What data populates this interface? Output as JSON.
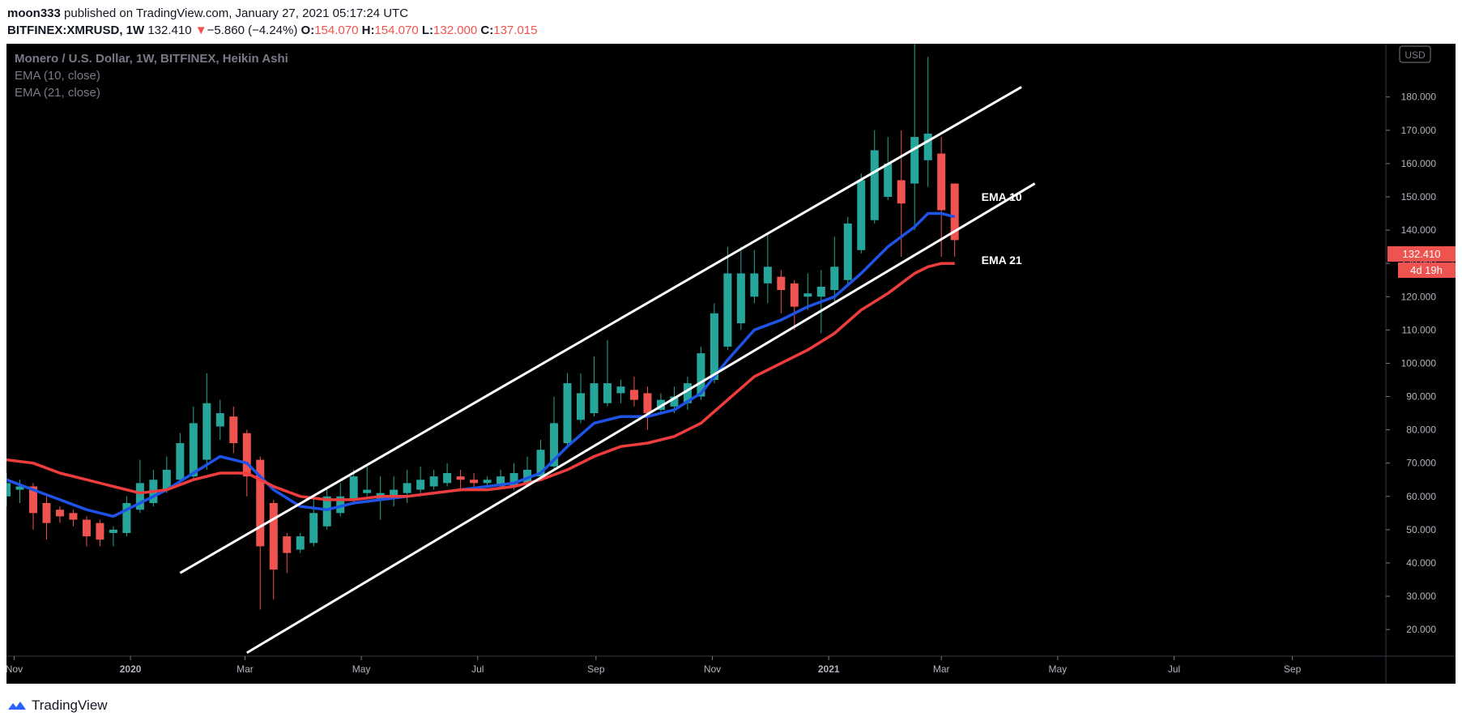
{
  "header": {
    "author": "moon333",
    "published_text": "published on TradingView.com, January 27, 2021 05:17:24 UTC",
    "symbol": "BITFINEX:XMRUSD, 1W",
    "last": "132.410",
    "arrow": "▼",
    "change": "−5.860 (−4.24%)",
    "o_label": "O:",
    "o_value": "154.070",
    "h_label": "H:",
    "h_value": "154.070",
    "l_label": "L:",
    "l_value": "132.000",
    "c_label": "C:",
    "c_value": "137.015"
  },
  "legend": {
    "title": "Monero / U.S. Dollar, 1W, BITFINEX, Heikin Ashi",
    "ema10": "EMA (10, close)",
    "ema21": "EMA (21, close)"
  },
  "price_axis": {
    "currency": "USD",
    "last_price_label": "132.410",
    "countdown_label": "4d 19h"
  },
  "footer": {
    "brand": "TradingView"
  },
  "colors": {
    "background": "#000000",
    "up": "#26a69a",
    "down": "#ef5350",
    "ema10": "#1e53e5",
    "ema21": "#ef3d3d",
    "trendline": "#ffffff"
  },
  "chart_data": {
    "type": "candlestick",
    "title": "Monero / U.S. Dollar, 1W, BITFINEX, Heikin Ashi",
    "x_ticks": [
      "Nov",
      "2020",
      "Mar",
      "May",
      "Jul",
      "Sep",
      "Nov",
      "2021",
      "Mar",
      "May",
      "Jul",
      "Sep"
    ],
    "y_ticks": [
      "20.000",
      "30.000",
      "40.000",
      "50.000",
      "60.000",
      "70.000",
      "80.000",
      "90.000",
      "100.000",
      "110.000",
      "120.000",
      "130.000",
      "140.000",
      "150.000",
      "160.000",
      "170.000",
      "180.000"
    ],
    "ylim": [
      12,
      196
    ],
    "x_range": [
      "2019-10-28",
      "2021-10-20"
    ],
    "x_tick_dates": [
      "2019-11-01",
      "2020-01-01",
      "2020-03-01",
      "2020-05-01",
      "2020-07-01",
      "2020-09-01",
      "2020-11-01",
      "2021-01-01",
      "2021-03-01",
      "2021-05-01",
      "2021-07-01",
      "2021-09-01"
    ],
    "candles": [
      {
        "date": "2019-10-28",
        "o": 60,
        "h": 67,
        "l": 57,
        "c": 64
      },
      {
        "date": "2019-11-04",
        "o": 62,
        "h": 65,
        "l": 58,
        "c": 63
      },
      {
        "date": "2019-11-11",
        "o": 63,
        "h": 64,
        "l": 50,
        "c": 55
      },
      {
        "date": "2019-11-18",
        "o": 58,
        "h": 60,
        "l": 47,
        "c": 52
      },
      {
        "date": "2019-11-25",
        "o": 56,
        "h": 57,
        "l": 52,
        "c": 54
      },
      {
        "date": "2019-12-02",
        "o": 55,
        "h": 56,
        "l": 51,
        "c": 53
      },
      {
        "date": "2019-12-09",
        "o": 53,
        "h": 54,
        "l": 45,
        "c": 48
      },
      {
        "date": "2019-12-16",
        "o": 52,
        "h": 53,
        "l": 45,
        "c": 47
      },
      {
        "date": "2019-12-23",
        "o": 49,
        "h": 51,
        "l": 45,
        "c": 50
      },
      {
        "date": "2019-12-30",
        "o": 49,
        "h": 60,
        "l": 48,
        "c": 58
      },
      {
        "date": "2020-01-06",
        "o": 56,
        "h": 71,
        "l": 55,
        "c": 64
      },
      {
        "date": "2020-01-13",
        "o": 58,
        "h": 68,
        "l": 57,
        "c": 65
      },
      {
        "date": "2020-01-20",
        "o": 62,
        "h": 72,
        "l": 61,
        "c": 68
      },
      {
        "date": "2020-01-27",
        "o": 65,
        "h": 79,
        "l": 64,
        "c": 76
      },
      {
        "date": "2020-02-03",
        "o": 66,
        "h": 87,
        "l": 65,
        "c": 82
      },
      {
        "date": "2020-02-10",
        "o": 71,
        "h": 97,
        "l": 68,
        "c": 88
      },
      {
        "date": "2020-02-17",
        "o": 81,
        "h": 89,
        "l": 77,
        "c": 85
      },
      {
        "date": "2020-02-24",
        "o": 84,
        "h": 87,
        "l": 73,
        "c": 76
      },
      {
        "date": "2020-03-02",
        "o": 79,
        "h": 80,
        "l": 60,
        "c": 66
      },
      {
        "date": "2020-03-09",
        "o": 71,
        "h": 72,
        "l": 26,
        "c": 45
      },
      {
        "date": "2020-03-16",
        "o": 58,
        "h": 59,
        "l": 29,
        "c": 38
      },
      {
        "date": "2020-03-23",
        "o": 48,
        "h": 49,
        "l": 37,
        "c": 43
      },
      {
        "date": "2020-03-30",
        "o": 44,
        "h": 49,
        "l": 43,
        "c": 48
      },
      {
        "date": "2020-04-06",
        "o": 46,
        "h": 60,
        "l": 45,
        "c": 55
      },
      {
        "date": "2020-04-13",
        "o": 51,
        "h": 63,
        "l": 50,
        "c": 60
      },
      {
        "date": "2020-04-20",
        "o": 55,
        "h": 64,
        "l": 54,
        "c": 60
      },
      {
        "date": "2020-04-27",
        "o": 59,
        "h": 68,
        "l": 58,
        "c": 66
      },
      {
        "date": "2020-05-04",
        "o": 61,
        "h": 69,
        "l": 60,
        "c": 62
      },
      {
        "date": "2020-05-11",
        "o": 59,
        "h": 66,
        "l": 53,
        "c": 61
      },
      {
        "date": "2020-05-18",
        "o": 60,
        "h": 66,
        "l": 57,
        "c": 62
      },
      {
        "date": "2020-05-25",
        "o": 61,
        "h": 68,
        "l": 58,
        "c": 64
      },
      {
        "date": "2020-06-01",
        "o": 62,
        "h": 69,
        "l": 61,
        "c": 65
      },
      {
        "date": "2020-06-08",
        "o": 63,
        "h": 68,
        "l": 62,
        "c": 66
      },
      {
        "date": "2020-06-15",
        "o": 64,
        "h": 70,
        "l": 63,
        "c": 67
      },
      {
        "date": "2020-06-22",
        "o": 66,
        "h": 68,
        "l": 62,
        "c": 65
      },
      {
        "date": "2020-06-29",
        "o": 65,
        "h": 67,
        "l": 62,
        "c": 64
      },
      {
        "date": "2020-07-06",
        "o": 64,
        "h": 66,
        "l": 63,
        "c": 65
      },
      {
        "date": "2020-07-13",
        "o": 63,
        "h": 68,
        "l": 62,
        "c": 66
      },
      {
        "date": "2020-07-20",
        "o": 63,
        "h": 70,
        "l": 62,
        "c": 67
      },
      {
        "date": "2020-07-27",
        "o": 64,
        "h": 72,
        "l": 63,
        "c": 68
      },
      {
        "date": "2020-08-03",
        "o": 66,
        "h": 77,
        "l": 65,
        "c": 74
      },
      {
        "date": "2020-08-10",
        "o": 69,
        "h": 90,
        "l": 68,
        "c": 82
      },
      {
        "date": "2020-08-17",
        "o": 76,
        "h": 97,
        "l": 75,
        "c": 94
      },
      {
        "date": "2020-08-24",
        "o": 83,
        "h": 97,
        "l": 82,
        "c": 91
      },
      {
        "date": "2020-08-31",
        "o": 85,
        "h": 102,
        "l": 84,
        "c": 94
      },
      {
        "date": "2020-09-07",
        "o": 88,
        "h": 107,
        "l": 87,
        "c": 94
      },
      {
        "date": "2020-09-14",
        "o": 91,
        "h": 95,
        "l": 88,
        "c": 93
      },
      {
        "date": "2020-09-21",
        "o": 92,
        "h": 96,
        "l": 87,
        "c": 89
      },
      {
        "date": "2020-09-28",
        "o": 91,
        "h": 93,
        "l": 80,
        "c": 85
      },
      {
        "date": "2020-10-05",
        "o": 86,
        "h": 91,
        "l": 85,
        "c": 89
      },
      {
        "date": "2020-10-12",
        "o": 87,
        "h": 93,
        "l": 85,
        "c": 90
      },
      {
        "date": "2020-10-19",
        "o": 88,
        "h": 96,
        "l": 86,
        "c": 94
      },
      {
        "date": "2020-10-26",
        "o": 90,
        "h": 105,
        "l": 89,
        "c": 103
      },
      {
        "date": "2020-11-02",
        "o": 95,
        "h": 118,
        "l": 94,
        "c": 115
      },
      {
        "date": "2020-11-09",
        "o": 105,
        "h": 135,
        "l": 104,
        "c": 127
      },
      {
        "date": "2020-11-16",
        "o": 112,
        "h": 135,
        "l": 110,
        "c": 127
      },
      {
        "date": "2020-11-23",
        "o": 120,
        "h": 134,
        "l": 118,
        "c": 127
      },
      {
        "date": "2020-11-30",
        "o": 124,
        "h": 139,
        "l": 118,
        "c": 129
      },
      {
        "date": "2020-12-07",
        "o": 126,
        "h": 128,
        "l": 115,
        "c": 122
      },
      {
        "date": "2020-12-14",
        "o": 124,
        "h": 125,
        "l": 110,
        "c": 117
      },
      {
        "date": "2020-12-21",
        "o": 120,
        "h": 127,
        "l": 116,
        "c": 121
      },
      {
        "date": "2020-12-28",
        "o": 120,
        "h": 128,
        "l": 109,
        "c": 123
      },
      {
        "date": "2021-01-04",
        "o": 122,
        "h": 138,
        "l": 118,
        "c": 129
      },
      {
        "date": "2021-01-11",
        "o": 125,
        "h": 144,
        "l": 123,
        "c": 142
      },
      {
        "date": "2021-01-18",
        "o": 134,
        "h": 157,
        "l": 133,
        "c": 155
      },
      {
        "date": "2021-01-25",
        "o": 143,
        "h": 170,
        "l": 142,
        "c": 164
      },
      {
        "date": "2021-02-01",
        "o": 150,
        "h": 168,
        "l": 149,
        "c": 160
      },
      {
        "date": "2021-02-08",
        "o": 155,
        "h": 170,
        "l": 132,
        "c": 148
      },
      {
        "date": "2021-02-15",
        "o": 154,
        "h": 196,
        "l": 140,
        "c": 168
      },
      {
        "date": "2021-02-22",
        "o": 161,
        "h": 192,
        "l": 153,
        "c": 169
      },
      {
        "date": "2021-03-01",
        "o": 163,
        "h": 168,
        "l": 132,
        "c": 146
      },
      {
        "date": "2021-03-08",
        "o": 154,
        "h": 154,
        "l": 132,
        "c": 137
      }
    ],
    "series": [
      {
        "name": "EMA (10, close)",
        "color": "#1e53e5",
        "points": [
          [
            "2019-10-28",
            65
          ],
          [
            "2019-11-11",
            62
          ],
          [
            "2019-11-25",
            59
          ],
          [
            "2019-12-09",
            56
          ],
          [
            "2019-12-23",
            54
          ],
          [
            "2020-01-06",
            58
          ],
          [
            "2020-01-20",
            62
          ],
          [
            "2020-02-03",
            67
          ],
          [
            "2020-02-17",
            72
          ],
          [
            "2020-03-02",
            70
          ],
          [
            "2020-03-16",
            62
          ],
          [
            "2020-03-30",
            57
          ],
          [
            "2020-04-13",
            56
          ],
          [
            "2020-04-27",
            58
          ],
          [
            "2020-05-11",
            59
          ],
          [
            "2020-05-25",
            60
          ],
          [
            "2020-06-08",
            61
          ],
          [
            "2020-06-22",
            62
          ],
          [
            "2020-07-06",
            63
          ],
          [
            "2020-07-20",
            64
          ],
          [
            "2020-08-03",
            67
          ],
          [
            "2020-08-17",
            75
          ],
          [
            "2020-08-31",
            82
          ],
          [
            "2020-09-14",
            84
          ],
          [
            "2020-09-28",
            84
          ],
          [
            "2020-10-12",
            86
          ],
          [
            "2020-10-26",
            91
          ],
          [
            "2020-11-09",
            101
          ],
          [
            "2020-11-23",
            110
          ],
          [
            "2020-12-07",
            113
          ],
          [
            "2020-12-21",
            117
          ],
          [
            "2021-01-04",
            120
          ],
          [
            "2021-01-18",
            127
          ],
          [
            "2021-02-01",
            135
          ],
          [
            "2021-02-15",
            141
          ],
          [
            "2021-02-22",
            145
          ],
          [
            "2021-03-01",
            145
          ],
          [
            "2021-03-08",
            144
          ]
        ]
      },
      {
        "name": "EMA (21, close)",
        "color": "#ef3d3d",
        "points": [
          [
            "2019-10-28",
            71
          ],
          [
            "2019-11-11",
            70
          ],
          [
            "2019-11-25",
            67
          ],
          [
            "2019-12-09",
            65
          ],
          [
            "2019-12-23",
            63
          ],
          [
            "2020-01-06",
            61
          ],
          [
            "2020-01-20",
            62
          ],
          [
            "2020-02-03",
            65
          ],
          [
            "2020-02-17",
            67
          ],
          [
            "2020-03-02",
            67
          ],
          [
            "2020-03-16",
            63
          ],
          [
            "2020-03-30",
            60
          ],
          [
            "2020-04-13",
            59
          ],
          [
            "2020-04-27",
            59
          ],
          [
            "2020-05-11",
            60
          ],
          [
            "2020-05-25",
            60
          ],
          [
            "2020-06-08",
            61
          ],
          [
            "2020-06-22",
            62
          ],
          [
            "2020-07-06",
            62
          ],
          [
            "2020-07-20",
            63
          ],
          [
            "2020-08-03",
            65
          ],
          [
            "2020-08-17",
            68
          ],
          [
            "2020-08-31",
            72
          ],
          [
            "2020-09-14",
            75
          ],
          [
            "2020-09-28",
            76
          ],
          [
            "2020-10-12",
            78
          ],
          [
            "2020-10-26",
            82
          ],
          [
            "2020-11-09",
            89
          ],
          [
            "2020-11-23",
            96
          ],
          [
            "2020-12-07",
            100
          ],
          [
            "2020-12-21",
            104
          ],
          [
            "2021-01-04",
            109
          ],
          [
            "2021-01-18",
            116
          ],
          [
            "2021-02-01",
            121
          ],
          [
            "2021-02-15",
            127
          ],
          [
            "2021-02-22",
            129
          ],
          [
            "2021-03-01",
            130
          ],
          [
            "2021-03-08",
            130
          ]
        ]
      }
    ],
    "trendlines": [
      {
        "name": "upper channel",
        "from": [
          "2020-01-27",
          37
        ],
        "to": [
          "2021-04-12",
          183
        ]
      },
      {
        "name": "lower channel",
        "from": [
          "2020-03-02",
          13
        ],
        "to": [
          "2021-04-19",
          154
        ]
      }
    ],
    "annotations": [
      {
        "text": "EMA 10",
        "date": "2021-03-22",
        "price": 150
      },
      {
        "text": "EMA 21",
        "date": "2021-03-22",
        "price": 131
      }
    ]
  }
}
